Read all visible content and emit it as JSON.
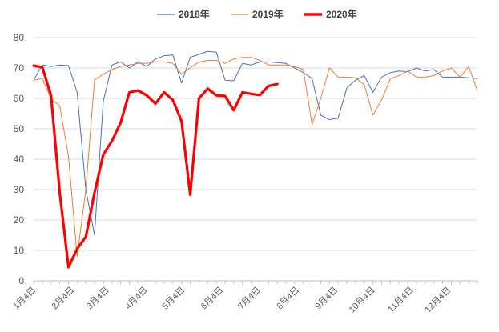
{
  "chart_data": {
    "type": "line",
    "title": "",
    "xlabel": "",
    "ylabel": "",
    "ylim": [
      0,
      80
    ],
    "yticks": [
      0,
      10,
      20,
      30,
      40,
      50,
      60,
      70,
      80
    ],
    "x_range_weeks": [
      1,
      52
    ],
    "xtick_labels": [
      {
        "label": "1月4日",
        "week": 1
      },
      {
        "label": "2月4日",
        "week": 5.43
      },
      {
        "label": "3月4日",
        "week": 9.43
      },
      {
        "label": "4月4日",
        "week": 13.86
      },
      {
        "label": "5月4日",
        "week": 18.14
      },
      {
        "label": "6月4日",
        "week": 22.57
      },
      {
        "label": "7月4日",
        "week": 26.86
      },
      {
        "label": "8月4日",
        "week": 31.29
      },
      {
        "label": "9月4日",
        "week": 35.71
      },
      {
        "label": "10月4日",
        "week": 40
      },
      {
        "label": "11月4日",
        "week": 44.43
      },
      {
        "label": "12月4日",
        "week": 48.71
      }
    ],
    "grid": "horizontal",
    "legend_position": "top",
    "series": [
      {
        "name": "2018年",
        "color": "#4472C4",
        "width": "thin",
        "values": [
          66,
          71,
          70.5,
          71,
          70.8,
          62,
          30,
          15,
          59,
          71,
          72,
          70,
          72,
          70.5,
          73,
          74,
          74.3,
          65,
          73.5,
          74.5,
          75.5,
          75.2,
          66,
          65.8,
          71.5,
          71,
          72,
          72,
          71.8,
          71.5,
          70,
          68.5,
          66.5,
          54.5,
          53,
          53.5,
          63.5,
          66,
          67.5,
          62,
          67,
          68.5,
          69,
          68.8,
          70,
          69,
          69.5,
          67,
          67,
          67,
          66.8,
          66.5
        ]
      },
      {
        "name": "2019年",
        "color": "#ED7D31",
        "width": "thin",
        "values": [
          66,
          66.5,
          60,
          57.5,
          41,
          8,
          30,
          66,
          68,
          69.5,
          70.5,
          71,
          71.5,
          71.5,
          72,
          72,
          71.5,
          68,
          70,
          72,
          72.5,
          72.5,
          71.5,
          73,
          73.5,
          73.5,
          72.5,
          71,
          71,
          71,
          70.5,
          69.5,
          51.5,
          60,
          70,
          67,
          67,
          66.8,
          64.5,
          54.5,
          59.5,
          66.5,
          67.5,
          69,
          67,
          67,
          67.5,
          69,
          70,
          67,
          70.5,
          62.5
        ]
      },
      {
        "name": "2020年",
        "color": "#FF0000",
        "width": "thick",
        "values": [
          70.8,
          70.2,
          61,
          29,
          4.5,
          10.5,
          14.5,
          29,
          41.5,
          46,
          52,
          62,
          62.6,
          61,
          58.3,
          62,
          59.5,
          52.5,
          28.3,
          60,
          63.2,
          61,
          60.8,
          56.1,
          62,
          61.5,
          61.1,
          64.1,
          64.7
        ]
      }
    ]
  }
}
